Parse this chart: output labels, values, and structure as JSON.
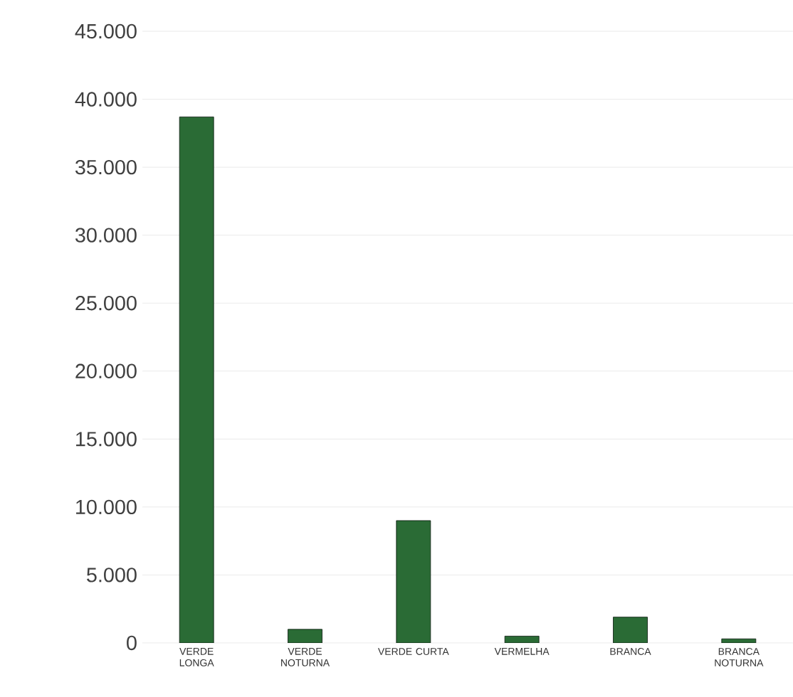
{
  "chart_data": {
    "type": "bar",
    "categories": [
      "VERDE LONGA",
      "VERDE NOTURNA",
      "VERDE CURTA",
      "VERMELHA",
      "BRANCA",
      "BRANCA NOTURNA"
    ],
    "values": [
      38700,
      1000,
      9000,
      500,
      1900,
      300
    ],
    "color": "#2a6b35",
    "ylim": [
      0,
      45000
    ],
    "yticks": [
      {
        "value": 0,
        "label": "0"
      },
      {
        "value": 5000,
        "label": "5.000"
      },
      {
        "value": 10000,
        "label": "10.000"
      },
      {
        "value": 15000,
        "label": "15.000"
      },
      {
        "value": 20000,
        "label": "20.000"
      },
      {
        "value": 25000,
        "label": "25.000"
      },
      {
        "value": 30000,
        "label": "30.000"
      },
      {
        "value": 35000,
        "label": "35.000"
      },
      {
        "value": 40000,
        "label": "40.000"
      },
      {
        "value": 45000,
        "label": "45.000"
      }
    ],
    "grid": "y"
  }
}
